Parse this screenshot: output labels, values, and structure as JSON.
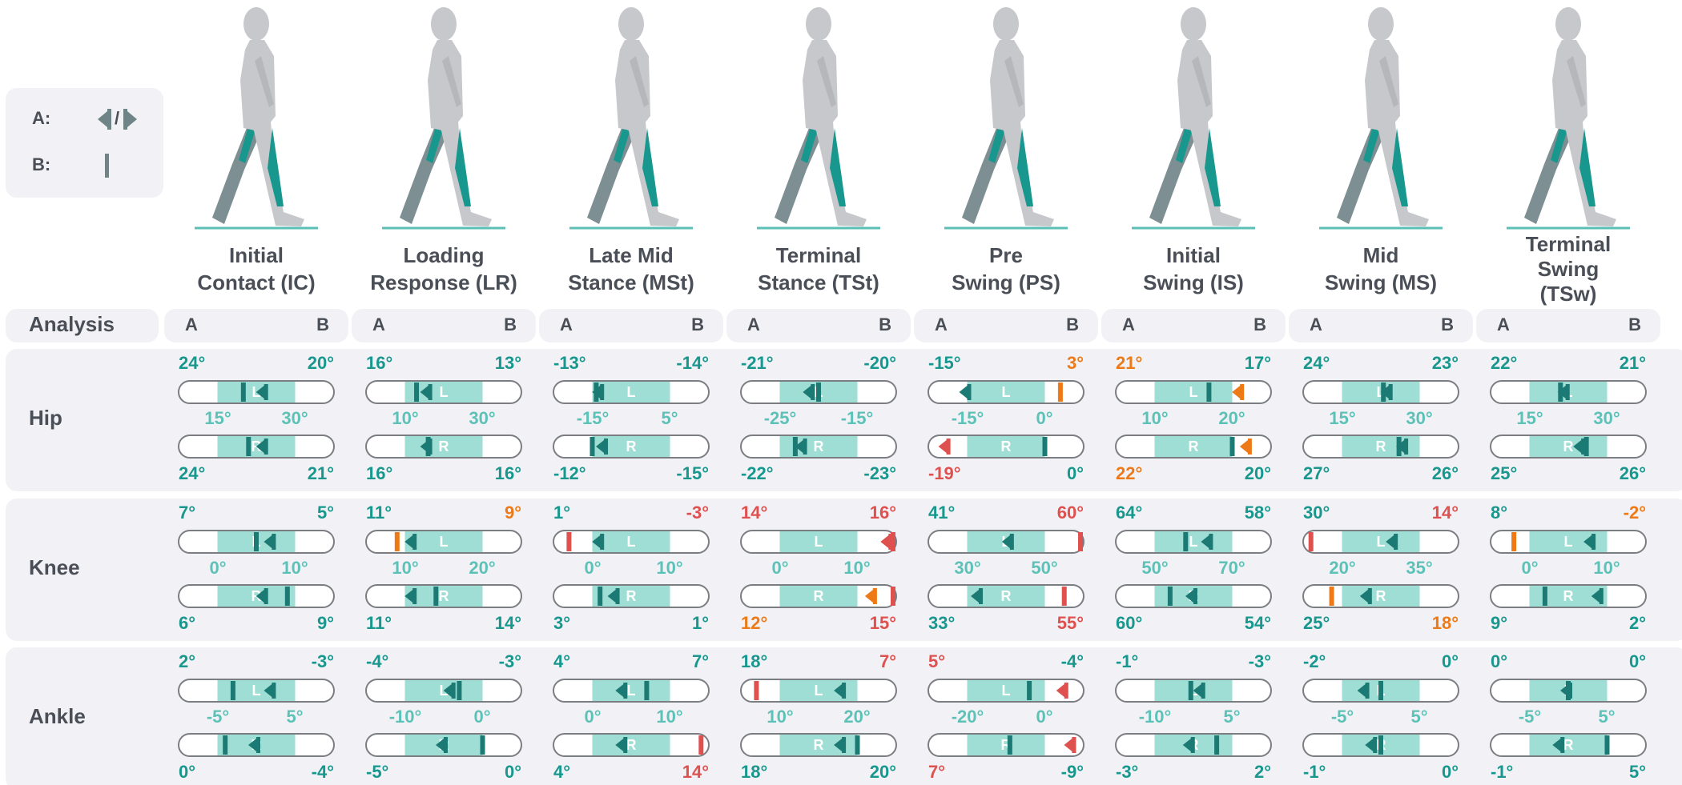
{
  "legend": {
    "a": "A:",
    "slash": "/",
    "b": "B:"
  },
  "analysis": {
    "label": "Analysis",
    "col_a": "A",
    "col_b": "B"
  },
  "phases": [
    {
      "name": [
        "Initial",
        "Contact (IC)"
      ]
    },
    {
      "name": [
        "Loading",
        "Response (LR)"
      ]
    },
    {
      "name": [
        "Late Mid",
        "Stance (MSt)"
      ]
    },
    {
      "name": [
        "Terminal",
        "Stance (TSt)"
      ]
    },
    {
      "name": [
        "Pre",
        "Swing (PS)"
      ]
    },
    {
      "name": [
        "Initial",
        "Swing (IS)"
      ]
    },
    {
      "name": [
        "Mid",
        "Swing (MS)"
      ]
    },
    {
      "name": [
        "Terminal",
        "Swing",
        "(TSw)"
      ]
    }
  ],
  "joints": [
    {
      "name": "Hip",
      "cells": [
        {
          "top": {
            "side": "L",
            "a": {
              "value": 24,
              "label": "24°"
            },
            "b": {
              "value": 20,
              "label": "20°"
            }
          },
          "range": {
            "low": {
              "value": 15,
              "label": "15°"
            },
            "high": {
              "value": 30,
              "label": "30°"
            }
          },
          "bottom": {
            "side": "R",
            "a": {
              "value": 24,
              "label": "24°"
            },
            "b": {
              "value": 21,
              "label": "21°"
            }
          }
        },
        {
          "top": {
            "side": "L",
            "a": {
              "value": 16,
              "label": "16°"
            },
            "b": {
              "value": 13,
              "label": "13°"
            }
          },
          "range": {
            "low": {
              "value": 10,
              "label": "10°"
            },
            "high": {
              "value": 30,
              "label": "30°"
            }
          },
          "bottom": {
            "side": "R",
            "a": {
              "value": 16,
              "label": "16°"
            },
            "b": {
              "value": 16,
              "label": "16°"
            }
          }
        },
        {
          "top": {
            "side": "L",
            "a": {
              "value": -13,
              "label": "-13°"
            },
            "b": {
              "value": -14,
              "label": "-14°"
            }
          },
          "range": {
            "low": {
              "value": -15,
              "label": "-15°"
            },
            "high": {
              "value": 5,
              "label": "5°"
            }
          },
          "bottom": {
            "side": "R",
            "a": {
              "value": -12,
              "label": "-12°"
            },
            "b": {
              "value": -15,
              "label": "-15°"
            }
          }
        },
        {
          "top": {
            "side": "L",
            "a": {
              "value": -21,
              "label": "-21°"
            },
            "b": {
              "value": -20,
              "label": "-20°"
            }
          },
          "range": {
            "low": {
              "value": -25,
              "label": "-25°"
            },
            "high": {
              "value": -15,
              "label": "-15°"
            }
          },
          "bottom": {
            "side": "R",
            "a": {
              "value": -22,
              "label": "-22°"
            },
            "b": {
              "value": -23,
              "label": "-23°"
            }
          }
        },
        {
          "top": {
            "side": "L",
            "a": {
              "value": -15,
              "label": "-15°"
            },
            "b": {
              "value": 3,
              "label": "3°",
              "status": "warn"
            }
          },
          "range": {
            "low": {
              "value": -15,
              "label": "-15°"
            },
            "high": {
              "value": 0,
              "label": "0°"
            }
          },
          "bottom": {
            "side": "R",
            "a": {
              "value": -19,
              "label": "-19°",
              "status": "bad"
            },
            "b": {
              "value": 0,
              "label": "0°"
            }
          }
        },
        {
          "top": {
            "side": "L",
            "a": {
              "value": 21,
              "label": "21°",
              "status": "warn"
            },
            "b": {
              "value": 17,
              "label": "17°"
            }
          },
          "range": {
            "low": {
              "value": 10,
              "label": "10°"
            },
            "high": {
              "value": 20,
              "label": "20°"
            }
          },
          "bottom": {
            "side": "R",
            "a": {
              "value": 22,
              "label": "22°",
              "status": "warn"
            },
            "b": {
              "value": 20,
              "label": "20°"
            }
          }
        },
        {
          "top": {
            "side": "L",
            "a": {
              "value": 24,
              "label": "24°"
            },
            "b": {
              "value": 23,
              "label": "23°"
            }
          },
          "range": {
            "low": {
              "value": 15,
              "label": "15°"
            },
            "high": {
              "value": 30,
              "label": "30°"
            }
          },
          "bottom": {
            "side": "R",
            "a": {
              "value": 27,
              "label": "27°"
            },
            "b": {
              "value": 26,
              "label": "26°"
            }
          }
        },
        {
          "top": {
            "side": "L",
            "a": {
              "value": 22,
              "label": "22°"
            },
            "b": {
              "value": 21,
              "label": "21°"
            }
          },
          "range": {
            "low": {
              "value": 15,
              "label": "15°"
            },
            "high": {
              "value": 30,
              "label": "30°"
            }
          },
          "bottom": {
            "side": "R",
            "a": {
              "value": 25,
              "label": "25°"
            },
            "b": {
              "value": 26,
              "label": "26°"
            }
          }
        }
      ]
    },
    {
      "name": "Knee",
      "cells": [
        {
          "top": {
            "side": "L",
            "a": {
              "value": 7,
              "label": "7°"
            },
            "b": {
              "value": 5,
              "label": "5°"
            }
          },
          "range": {
            "low": {
              "value": 0,
              "label": "0°"
            },
            "high": {
              "value": 10,
              "label": "10°"
            }
          },
          "bottom": {
            "side": "R",
            "a": {
              "value": 6,
              "label": "6°"
            },
            "b": {
              "value": 9,
              "label": "9°"
            }
          }
        },
        {
          "top": {
            "side": "L",
            "a": {
              "value": 11,
              "label": "11°"
            },
            "b": {
              "value": 9,
              "label": "9°",
              "status": "warn"
            }
          },
          "range": {
            "low": {
              "value": 10,
              "label": "10°"
            },
            "high": {
              "value": 20,
              "label": "20°"
            }
          },
          "bottom": {
            "side": "R",
            "a": {
              "value": 11,
              "label": "11°"
            },
            "b": {
              "value": 14,
              "label": "14°"
            }
          }
        },
        {
          "top": {
            "side": "L",
            "a": {
              "value": 1,
              "label": "1°"
            },
            "b": {
              "value": -3,
              "label": "-3°",
              "status": "bad"
            }
          },
          "range": {
            "low": {
              "value": 0,
              "label": "0°"
            },
            "high": {
              "value": 10,
              "label": "10°"
            }
          },
          "bottom": {
            "side": "R",
            "a": {
              "value": 3,
              "label": "3°"
            },
            "b": {
              "value": 1,
              "label": "1°"
            }
          }
        },
        {
          "top": {
            "side": "L",
            "a": {
              "value": 14,
              "label": "14°",
              "status": "bad"
            },
            "b": {
              "value": 16,
              "label": "16°",
              "status": "bad"
            }
          },
          "range": {
            "low": {
              "value": 0,
              "label": "0°"
            },
            "high": {
              "value": 10,
              "label": "10°"
            }
          },
          "bottom": {
            "side": "R",
            "a": {
              "value": 12,
              "label": "12°",
              "status": "warn"
            },
            "b": {
              "value": 15,
              "label": "15°",
              "status": "bad"
            }
          }
        },
        {
          "top": {
            "side": "L",
            "a": {
              "value": 41,
              "label": "41°"
            },
            "b": {
              "value": 60,
              "label": "60°",
              "status": "bad"
            }
          },
          "range": {
            "low": {
              "value": 30,
              "label": "30°"
            },
            "high": {
              "value": 50,
              "label": "50°"
            }
          },
          "bottom": {
            "side": "R",
            "a": {
              "value": 33,
              "label": "33°"
            },
            "b": {
              "value": 55,
              "label": "55°",
              "status": "bad"
            }
          }
        },
        {
          "top": {
            "side": "L",
            "a": {
              "value": 64,
              "label": "64°"
            },
            "b": {
              "value": 58,
              "label": "58°"
            }
          },
          "range": {
            "low": {
              "value": 50,
              "label": "50°"
            },
            "high": {
              "value": 70,
              "label": "70°"
            }
          },
          "bottom": {
            "side": "R",
            "a": {
              "value": 60,
              "label": "60°"
            },
            "b": {
              "value": 54,
              "label": "54°"
            }
          }
        },
        {
          "top": {
            "side": "L",
            "a": {
              "value": 30,
              "label": "30°"
            },
            "b": {
              "value": 14,
              "label": "14°",
              "status": "bad"
            }
          },
          "range": {
            "low": {
              "value": 20,
              "label": "20°"
            },
            "high": {
              "value": 35,
              "label": "35°"
            }
          },
          "bottom": {
            "side": "R",
            "a": {
              "value": 25,
              "label": "25°"
            },
            "b": {
              "value": 18,
              "label": "18°",
              "status": "warn"
            }
          }
        },
        {
          "top": {
            "side": "L",
            "a": {
              "value": 8,
              "label": "8°"
            },
            "b": {
              "value": -2,
              "label": "-2°",
              "status": "warn"
            }
          },
          "range": {
            "low": {
              "value": 0,
              "label": "0°"
            },
            "high": {
              "value": 10,
              "label": "10°"
            }
          },
          "bottom": {
            "side": "R",
            "a": {
              "value": 9,
              "label": "9°"
            },
            "b": {
              "value": 2,
              "label": "2°"
            }
          }
        }
      ]
    },
    {
      "name": "Ankle",
      "cells": [
        {
          "top": {
            "side": "L",
            "a": {
              "value": 2,
              "label": "2°"
            },
            "b": {
              "value": -3,
              "label": "-3°"
            }
          },
          "range": {
            "low": {
              "value": -5,
              "label": "-5°"
            },
            "high": {
              "value": 5,
              "label": "5°"
            }
          },
          "bottom": {
            "side": "R",
            "a": {
              "value": 0,
              "label": "0°"
            },
            "b": {
              "value": -4,
              "label": "-4°"
            }
          }
        },
        {
          "top": {
            "side": "L",
            "a": {
              "value": -4,
              "label": "-4°"
            },
            "b": {
              "value": -3,
              "label": "-3°"
            }
          },
          "range": {
            "low": {
              "value": -10,
              "label": "-10°"
            },
            "high": {
              "value": 0,
              "label": "0°"
            }
          },
          "bottom": {
            "side": "R",
            "a": {
              "value": -5,
              "label": "-5°"
            },
            "b": {
              "value": 0,
              "label": "0°"
            }
          }
        },
        {
          "top": {
            "side": "L",
            "a": {
              "value": 4,
              "label": "4°"
            },
            "b": {
              "value": 7,
              "label": "7°"
            }
          },
          "range": {
            "low": {
              "value": 0,
              "label": "0°"
            },
            "high": {
              "value": 10,
              "label": "10°"
            }
          },
          "bottom": {
            "side": "R",
            "a": {
              "value": 4,
              "label": "4°"
            },
            "b": {
              "value": 14,
              "label": "14°",
              "status": "bad"
            }
          }
        },
        {
          "top": {
            "side": "L",
            "a": {
              "value": 18,
              "label": "18°"
            },
            "b": {
              "value": 7,
              "label": "7°",
              "status": "bad"
            }
          },
          "range": {
            "low": {
              "value": 10,
              "label": "10°"
            },
            "high": {
              "value": 20,
              "label": "20°"
            }
          },
          "bottom": {
            "side": "R",
            "a": {
              "value": 18,
              "label": "18°"
            },
            "b": {
              "value": 20,
              "label": "20°"
            }
          }
        },
        {
          "top": {
            "side": "L",
            "a": {
              "value": 5,
              "label": "5°",
              "status": "bad"
            },
            "b": {
              "value": -4,
              "label": "-4°"
            }
          },
          "range": {
            "low": {
              "value": -20,
              "label": "-20°"
            },
            "high": {
              "value": 0,
              "label": "0°"
            }
          },
          "bottom": {
            "side": "R",
            "a": {
              "value": 7,
              "label": "7°",
              "status": "bad"
            },
            "b": {
              "value": -9,
              "label": "-9°"
            }
          }
        },
        {
          "top": {
            "side": "L",
            "a": {
              "value": -1,
              "label": "-1°"
            },
            "b": {
              "value": -3,
              "label": "-3°"
            }
          },
          "range": {
            "low": {
              "value": -10,
              "label": "-10°"
            },
            "high": {
              "value": 5,
              "label": "5°"
            }
          },
          "bottom": {
            "side": "R",
            "a": {
              "value": -3,
              "label": "-3°"
            },
            "b": {
              "value": 2,
              "label": "2°"
            }
          }
        },
        {
          "top": {
            "side": "L",
            "a": {
              "value": -2,
              "label": "-2°"
            },
            "b": {
              "value": 0,
              "label": "0°"
            }
          },
          "range": {
            "low": {
              "value": -5,
              "label": "-5°"
            },
            "high": {
              "value": 5,
              "label": "5°"
            }
          },
          "bottom": {
            "side": "R",
            "a": {
              "value": -1,
              "label": "-1°"
            },
            "b": {
              "value": 0,
              "label": "0°"
            }
          }
        },
        {
          "top": {
            "side": "L",
            "a": {
              "value": 0,
              "label": "0°"
            },
            "b": {
              "value": 0,
              "label": "0°"
            }
          },
          "range": {
            "low": {
              "value": -5,
              "label": "-5°"
            },
            "high": {
              "value": 5,
              "label": "5°"
            }
          },
          "bottom": {
            "side": "R",
            "a": {
              "value": -1,
              "label": "-1°"
            },
            "b": {
              "value": 5,
              "label": "5°"
            }
          }
        }
      ]
    }
  ]
}
